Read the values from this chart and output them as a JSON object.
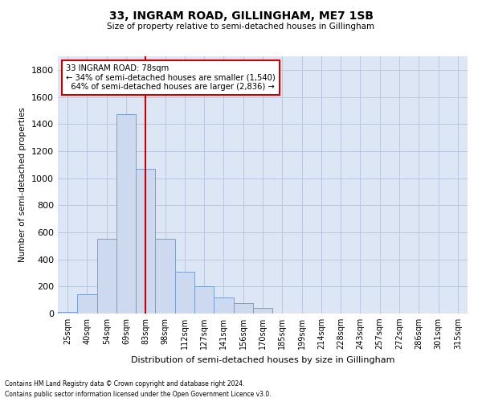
{
  "title": "33, INGRAM ROAD, GILLINGHAM, ME7 1SB",
  "subtitle": "Size of property relative to semi-detached houses in Gillingham",
  "xlabel": "Distribution of semi-detached houses by size in Gillingham",
  "ylabel": "Number of semi-detached properties",
  "footnote1": "Contains HM Land Registry data © Crown copyright and database right 2024.",
  "footnote2": "Contains public sector information licensed under the Open Government Licence v3.0.",
  "bar_color": "#ccd9ee",
  "bar_edge_color": "#7a9fd0",
  "grid_color": "#b8c8df",
  "background_color": "#dce6f5",
  "annotation_box_color": "#ffffff",
  "annotation_border_color": "#cc0000",
  "vline_color": "#cc0000",
  "categories": [
    "25sqm",
    "40sqm",
    "54sqm",
    "69sqm",
    "83sqm",
    "98sqm",
    "112sqm",
    "127sqm",
    "141sqm",
    "156sqm",
    "170sqm",
    "185sqm",
    "199sqm",
    "214sqm",
    "228sqm",
    "243sqm",
    "257sqm",
    "272sqm",
    "286sqm",
    "301sqm",
    "315sqm"
  ],
  "values": [
    10,
    140,
    550,
    1470,
    1070,
    550,
    310,
    200,
    120,
    80,
    40,
    0,
    0,
    0,
    0,
    0,
    0,
    0,
    0,
    0,
    0
  ],
  "ylim": [
    0,
    1900
  ],
  "yticks": [
    0,
    200,
    400,
    600,
    800,
    1000,
    1200,
    1400,
    1600,
    1800
  ],
  "property_label": "33 INGRAM ROAD: 78sqm",
  "pct_smaller": "34%",
  "n_smaller": "1,540",
  "pct_larger": "64%",
  "n_larger": "2,836",
  "vline_x": 4
}
